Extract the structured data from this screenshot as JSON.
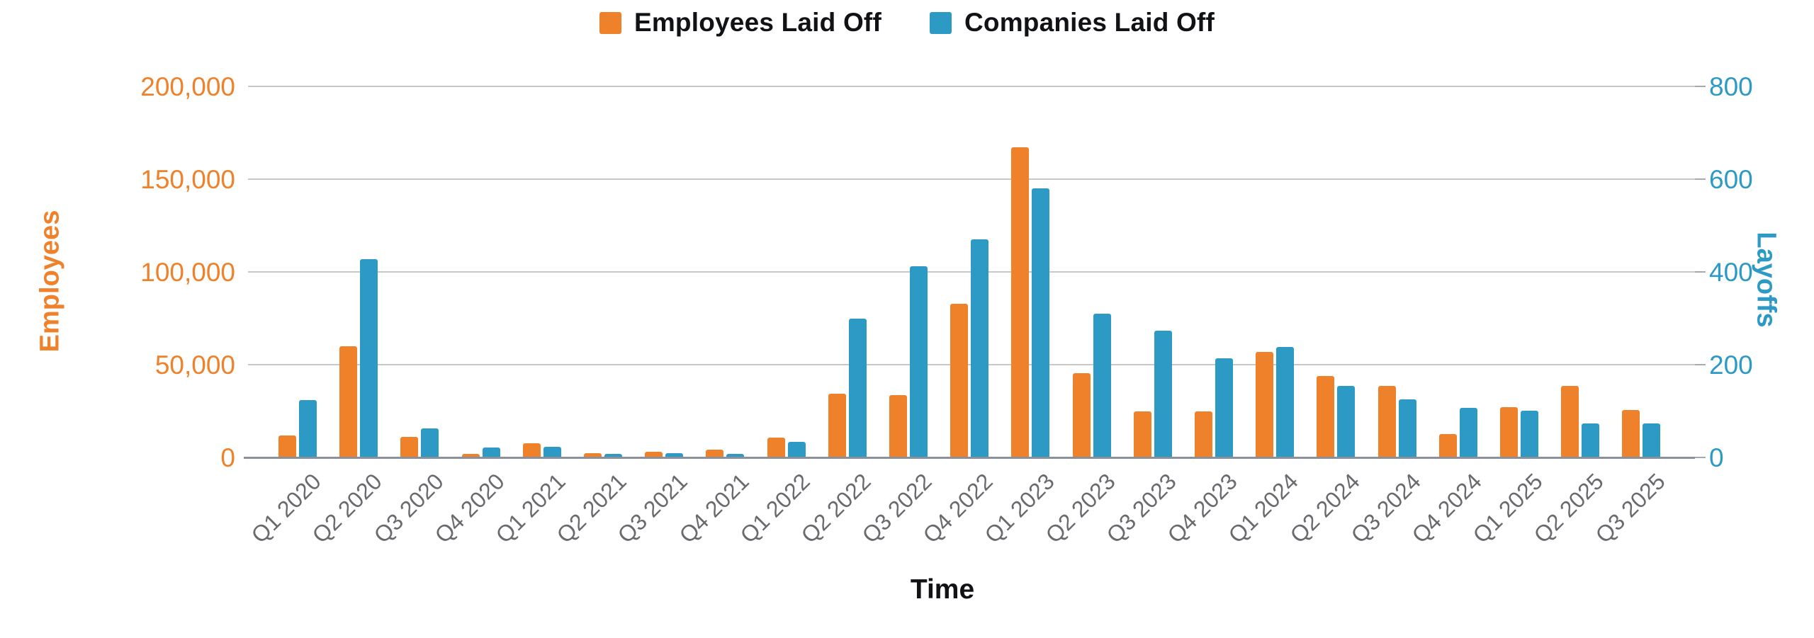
{
  "legend": [
    {
      "label": "Employees Laid Off",
      "color": "#F0812B"
    },
    {
      "label": "Companies Laid Off",
      "color": "#2D9AC6"
    }
  ],
  "chart_data": {
    "type": "bar",
    "title": "",
    "xlabel": "Time",
    "grid": true,
    "legend_position": "top",
    "categories": [
      "Q1 2020",
      "Q2 2020",
      "Q3 2020",
      "Q4 2020",
      "Q1 2021",
      "Q2 2021",
      "Q3 2021",
      "Q4 2021",
      "Q1 2022",
      "Q2 2022",
      "Q3 2022",
      "Q4 2022",
      "Q1 2023",
      "Q2 2023",
      "Q3 2023",
      "Q4 2023",
      "Q1 2024",
      "Q2 2024",
      "Q3 2024",
      "Q4 2024",
      "Q1 2025",
      "Q2 2025",
      "Q3 2025"
    ],
    "series": [
      {
        "name": "Employees Laid Off",
        "axis": "left",
        "color": "#F0812B",
        "values": [
          12000,
          60000,
          11000,
          2000,
          7500,
          2300,
          3000,
          4200,
          10500,
          34500,
          33500,
          83000,
          167000,
          45500,
          25000,
          25000,
          57000,
          44000,
          38500,
          12500,
          27000,
          38500,
          25500
        ]
      },
      {
        "name": "Companies Laid Off",
        "axis": "right",
        "color": "#2D9AC6",
        "values": [
          123,
          428,
          63,
          22,
          23,
          8,
          9,
          7,
          34,
          300,
          412,
          470,
          580,
          310,
          274,
          213,
          238,
          154,
          125,
          107,
          101,
          73,
          73
        ]
      }
    ],
    "left_axis": {
      "title": "Employees",
      "min": 0,
      "max": 200000,
      "ticks": [
        "0",
        "50,000",
        "100,000",
        "150,000",
        "200,000"
      ],
      "color": "#F0812B"
    },
    "right_axis": {
      "title": "Layoffs",
      "min": 0,
      "max": 800,
      "ticks": [
        "0",
        "200",
        "400",
        "600",
        "800"
      ],
      "color": "#2D9AC6"
    },
    "colors": {
      "gridline": "#C8C8C8",
      "baseline": "#8B919B",
      "x_tick_text": "#696A6E"
    }
  }
}
